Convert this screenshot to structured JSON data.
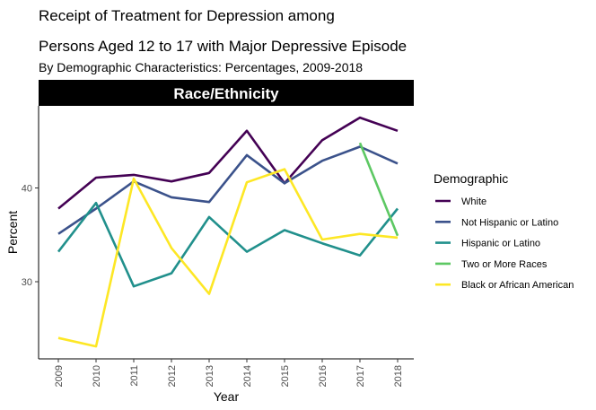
{
  "chart_data": {
    "type": "line",
    "title_line1": "Receipt of Treatment for Depression among",
    "title_line2": "Persons Aged 12 to 17 with Major Depressive Episode",
    "subtitle": "By Demographic Characteristics: Percentages, 2009-2018",
    "facet_label": "Race/Ethnicity",
    "xlabel": "Year",
    "ylabel": "Percent",
    "x": [
      "2009",
      "2010",
      "2011",
      "2012",
      "2013",
      "2014",
      "2015",
      "2016",
      "2017",
      "2018"
    ],
    "y_ticks": [
      "30",
      "40"
    ],
    "xlim": [
      2009,
      2018
    ],
    "ylim": [
      22,
      49
    ],
    "grid": false,
    "legend_title": "Demographic",
    "legend_position": "right",
    "series": [
      {
        "name": "White",
        "color": "#440154",
        "values": [
          37.8,
          41.1,
          41.4,
          40.7,
          41.6,
          46.1,
          40.5,
          45.1,
          47.5,
          46.1
        ]
      },
      {
        "name": "Not Hispanic or Latino",
        "color": "#3B528B",
        "values": [
          35.1,
          37.8,
          40.7,
          39.0,
          38.5,
          43.5,
          40.5,
          42.9,
          44.4,
          42.6
        ]
      },
      {
        "name": "Hispanic or Latino",
        "color": "#21908C",
        "values": [
          33.2,
          38.4,
          29.5,
          30.9,
          36.9,
          33.2,
          35.5,
          34.1,
          32.8,
          37.8
        ]
      },
      {
        "name": "Two or More Races",
        "color": "#5DC863",
        "values": [
          null,
          null,
          null,
          null,
          null,
          null,
          null,
          null,
          44.8,
          34.9
        ]
      },
      {
        "name": "Black or African American",
        "color": "#FDE725",
        "values": [
          24.0,
          23.1,
          41.0,
          33.6,
          28.7,
          40.6,
          42.0,
          34.5,
          35.1,
          34.7
        ]
      }
    ]
  }
}
